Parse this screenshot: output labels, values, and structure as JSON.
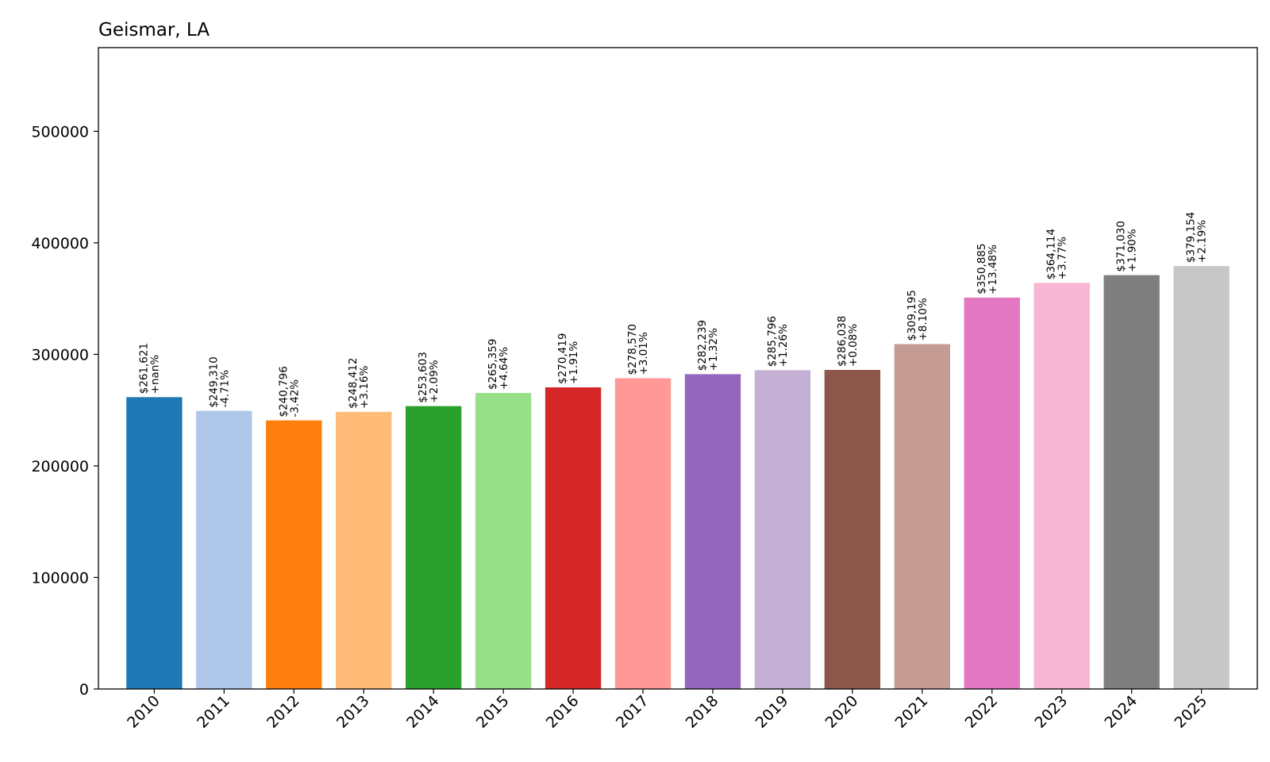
{
  "chart_data": {
    "type": "bar",
    "title": "Geismar, LA",
    "xlabel": "",
    "ylabel": "",
    "ylim": [
      0,
      575000
    ],
    "yticks": [
      0,
      100000,
      200000,
      300000,
      400000,
      500000
    ],
    "ytick_labels": [
      "0",
      "100000",
      "200000",
      "300000",
      "400000",
      "500000"
    ],
    "grid": false,
    "legend": "none",
    "categories": [
      "2010",
      "2011",
      "2012",
      "2013",
      "2014",
      "2015",
      "2016",
      "2017",
      "2018",
      "2019",
      "2020",
      "2021",
      "2022",
      "2023",
      "2024",
      "2025"
    ],
    "values": [
      261621,
      249310,
      240796,
      248412,
      253603,
      265359,
      270419,
      278570,
      282239,
      285796,
      286038,
      309195,
      350885,
      364114,
      371030,
      379154
    ],
    "value_labels": [
      "$261,621",
      "$249,310",
      "$240,796",
      "$248,412",
      "$253,603",
      "$265,359",
      "$270,419",
      "$278,570",
      "$282,239",
      "$285,796",
      "$286,038",
      "$309,195",
      "$350,885",
      "$364,114",
      "$371,030",
      "$379,154"
    ],
    "change_labels": [
      "+nan%",
      "-4.71%",
      "-3.42%",
      "+3.16%",
      "+2.09%",
      "+4.64%",
      "+1.91%",
      "+3.01%",
      "+1.32%",
      "+1.26%",
      "+0.08%",
      "+8.10%",
      "+13.48%",
      "+3.77%",
      "+1.90%",
      "+2.19%"
    ],
    "colors": [
      "#1f77b4",
      "#aec7e8",
      "#ff7f0e",
      "#ffbb78",
      "#2ca02c",
      "#98df8a",
      "#d62728",
      "#ff9896",
      "#9467bd",
      "#c5b0d5",
      "#8c564b",
      "#c49c94",
      "#e377c2",
      "#f7b6d2",
      "#7f7f7f",
      "#c7c7c7"
    ]
  }
}
